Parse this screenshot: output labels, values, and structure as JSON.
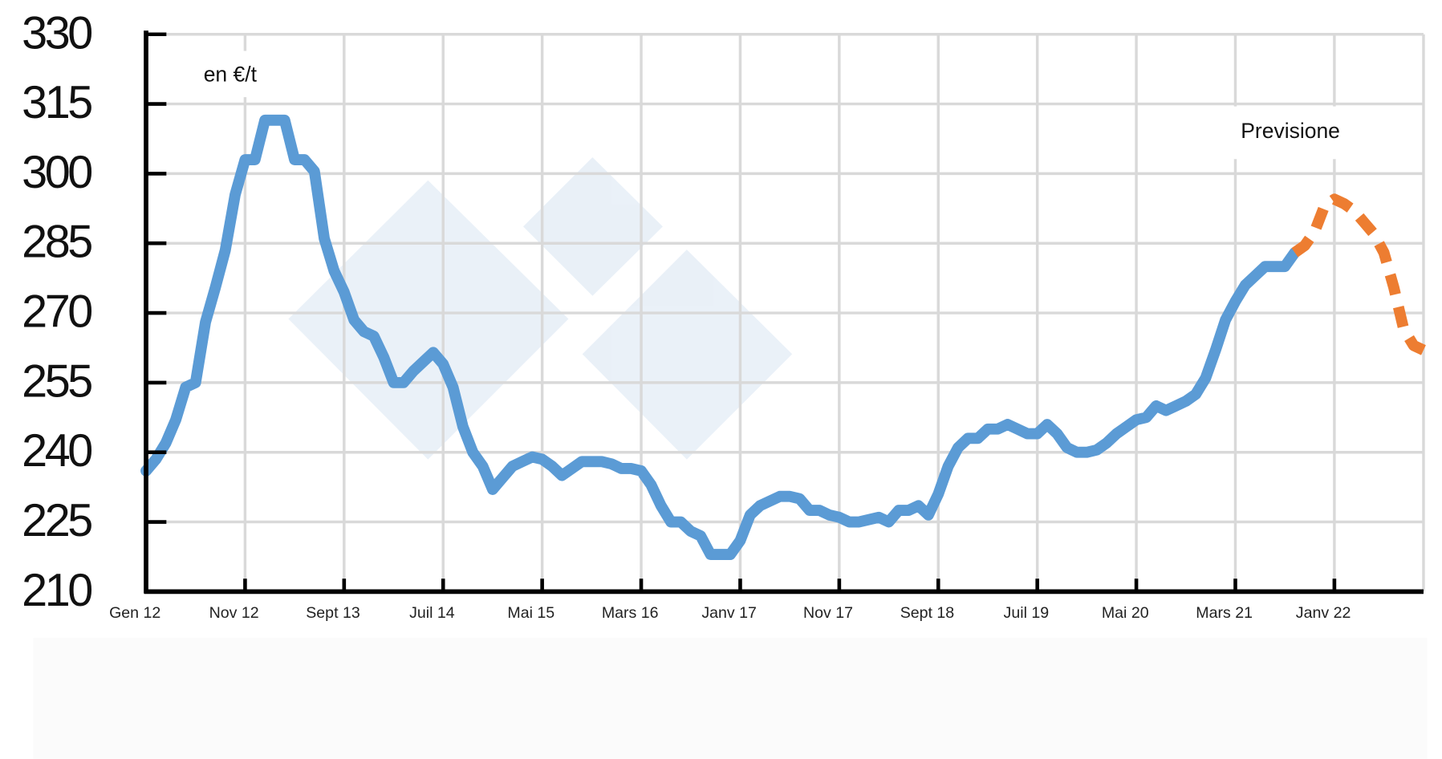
{
  "chart_data": {
    "type": "line",
    "annotations": [
      "en €/t",
      "Previsione"
    ],
    "categories": [
      "Gen 12",
      null,
      null,
      null,
      null,
      null,
      null,
      null,
      null,
      null,
      "Nov 12",
      null,
      null,
      null,
      null,
      null,
      null,
      null,
      null,
      null,
      "Sept 13",
      null,
      null,
      null,
      null,
      null,
      null,
      null,
      null,
      null,
      "Juil 14",
      null,
      null,
      null,
      null,
      null,
      null,
      null,
      null,
      null,
      "Mai 15",
      null,
      null,
      null,
      null,
      null,
      null,
      null,
      null,
      null,
      "Mars 16",
      null,
      null,
      null,
      null,
      null,
      null,
      null,
      null,
      null,
      "Janv 17",
      null,
      null,
      null,
      null,
      null,
      null,
      null,
      null,
      null,
      "Nov 17",
      null,
      null,
      null,
      null,
      null,
      null,
      null,
      null,
      null,
      "Sept 18",
      null,
      null,
      null,
      null,
      null,
      null,
      null,
      null,
      null,
      "Juil 19",
      null,
      null,
      null,
      null,
      null,
      null,
      null,
      null,
      null,
      "Mai 20",
      null,
      null,
      null,
      null,
      null,
      null,
      null,
      null,
      null,
      "Mars 21",
      null,
      null,
      null,
      null,
      null,
      null,
      null,
      null,
      null,
      "Janv 22",
      null,
      null,
      null,
      null,
      null,
      null,
      null,
      null,
      null
    ],
    "series": [
      {
        "color": "#5b9bd5",
        "dashed": false,
        "values": [
          236,
          238.5,
          242,
          247,
          254,
          255,
          268,
          275.5,
          283.5,
          295.5,
          303,
          303,
          311.5,
          311.5,
          311.5,
          303,
          303,
          300.5,
          286,
          279,
          274.5,
          268.5,
          266,
          265,
          260.5,
          255,
          255,
          257.5,
          259.5,
          261.5,
          259,
          254,
          245.5,
          240,
          237,
          232,
          234.5,
          237,
          238,
          239,
          238.5,
          237,
          235,
          236.5,
          238,
          238,
          238,
          237.5,
          236.5,
          236.5,
          236,
          233,
          228.5,
          225,
          225,
          223,
          222,
          218,
          218,
          218,
          221,
          226.5,
          228.5,
          229.5,
          230.5,
          230.5,
          230,
          227.5,
          227.5,
          226.5,
          226,
          225,
          225,
          225.5,
          226,
          225,
          227.5,
          227.5,
          228.5,
          226.5,
          231,
          237,
          241,
          243,
          243,
          245,
          245,
          246,
          245,
          244,
          244,
          246,
          244,
          241,
          240,
          240,
          240.5,
          242,
          244,
          245.5,
          247,
          247.5,
          250,
          249,
          250,
          251,
          252.5,
          256,
          262,
          268.5,
          272.5,
          276,
          278,
          280,
          280,
          280,
          283,
          null,
          null,
          null,
          null,
          null,
          null,
          null,
          null,
          null,
          null,
          null,
          null,
          null
        ]
      },
      {
        "color": "#ed7d31",
        "dashed": true,
        "values": [
          null,
          null,
          null,
          null,
          null,
          null,
          null,
          null,
          null,
          null,
          null,
          null,
          null,
          null,
          null,
          null,
          null,
          null,
          null,
          null,
          null,
          null,
          null,
          null,
          null,
          null,
          null,
          null,
          null,
          null,
          null,
          null,
          null,
          null,
          null,
          null,
          null,
          null,
          null,
          null,
          null,
          null,
          null,
          null,
          null,
          null,
          null,
          null,
          null,
          null,
          null,
          null,
          null,
          null,
          null,
          null,
          null,
          null,
          null,
          null,
          null,
          null,
          null,
          null,
          null,
          null,
          null,
          null,
          null,
          null,
          null,
          null,
          null,
          null,
          null,
          null,
          null,
          null,
          null,
          null,
          null,
          null,
          null,
          null,
          null,
          null,
          null,
          null,
          null,
          null,
          null,
          null,
          null,
          null,
          null,
          null,
          null,
          null,
          null,
          null,
          null,
          null,
          null,
          null,
          null,
          null,
          null,
          null,
          null,
          null,
          null,
          null,
          null,
          null,
          null,
          null,
          283,
          284.5,
          287.5,
          293,
          294.5,
          293.5,
          292,
          289.5,
          287,
          283,
          275.5,
          266.5,
          263,
          262
        ]
      }
    ],
    "ylim": [
      210,
      330
    ],
    "yticks": [
      210,
      225,
      240,
      255,
      270,
      285,
      300,
      315,
      330
    ],
    "grid": true
  }
}
